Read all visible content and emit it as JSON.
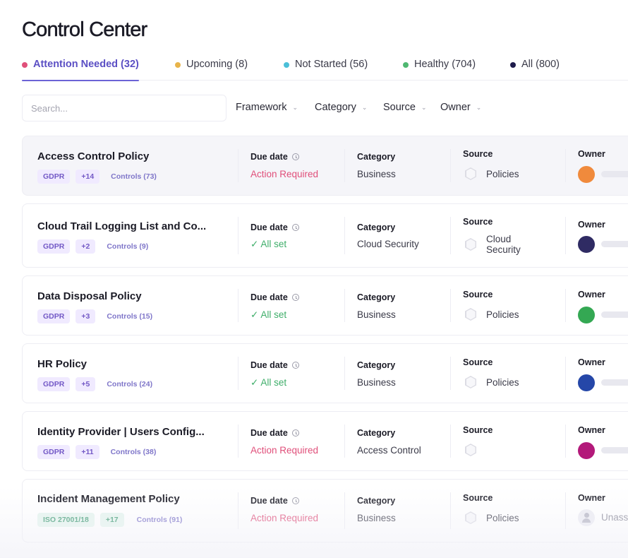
{
  "page": {
    "title": "Control Center"
  },
  "tabs": [
    {
      "label": "Attention Needed (32)",
      "color": "#e0507a"
    },
    {
      "label": "Upcoming (8)",
      "color": "#e8b44a"
    },
    {
      "label": "Not Started (56)",
      "color": "#4bbfd8"
    },
    {
      "label": "Healthy (704)",
      "color": "#4fb871"
    },
    {
      "label": "All (800)",
      "color": "#1e1b4b"
    }
  ],
  "search": {
    "placeholder": "Search..."
  },
  "filters": [
    {
      "label": "Framework"
    },
    {
      "label": "Category"
    },
    {
      "label": "Source"
    },
    {
      "label": "Owner"
    }
  ],
  "columns": {
    "due_date": "Due date",
    "category": "Category",
    "source": "Source",
    "owner": "Owner"
  },
  "rows": [
    {
      "name": "Access Control Policy",
      "tag": "GDPR",
      "more": "+14",
      "controls": "Controls (73)",
      "status": "Action Required",
      "status_type": "required",
      "category": "Business",
      "source": "Policies",
      "owner_color": "#f08a3c"
    },
    {
      "name": "Cloud Trail Logging List and Co...",
      "tag": "GDPR",
      "more": "+2",
      "controls": "Controls (9)",
      "status": "All set",
      "status_icon": "✓",
      "status_type": "ok",
      "category": "Cloud Security",
      "source_line1": "Cloud",
      "source_line2": "Security",
      "owner_color": "#2f2b63"
    },
    {
      "name": "Data Disposal Policy",
      "tag": "GDPR",
      "more": "+3",
      "controls": "Controls (15)",
      "status": "All set",
      "status_icon": "✓",
      "status_type": "ok",
      "category": "Business",
      "source": "Policies",
      "owner_color": "#34a853"
    },
    {
      "name": "HR Policy",
      "tag": "GDPR",
      "more": "+5",
      "controls": "Controls (24)",
      "status": "All set",
      "status_icon": "✓",
      "status_type": "ok",
      "category": "Business",
      "source": "Policies",
      "owner_color": "#2547a8"
    },
    {
      "name": "Identity Provider | Users Config...",
      "tag": "GDPR",
      "more": "+11",
      "controls": "Controls (38)",
      "status": "Action Required",
      "status_type": "required",
      "category": "Access Control",
      "source": "",
      "owner_color": "#b3197a"
    },
    {
      "name": "Incident Management Policy",
      "tag": "ISO 27001/18",
      "more": "+17",
      "controls": "Controls (91)",
      "status": "Action Required",
      "status_type": "required",
      "category": "Business",
      "source": "Policies",
      "owner_text": "Unass"
    }
  ]
}
